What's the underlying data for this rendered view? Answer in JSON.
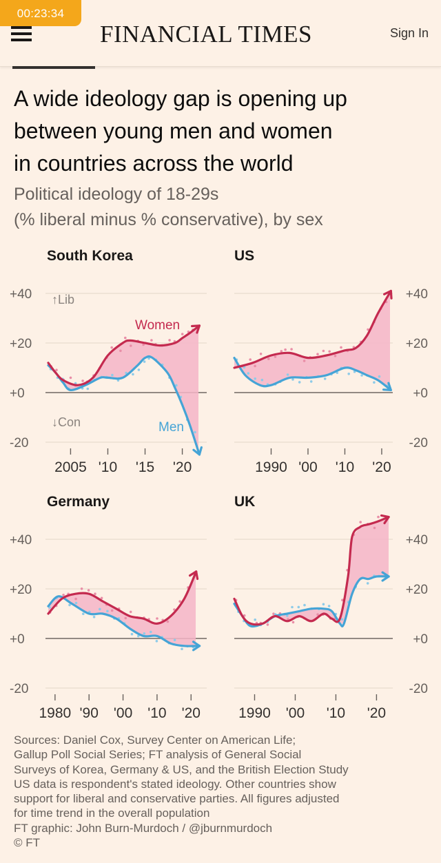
{
  "timer": "00:23:34",
  "header": {
    "brand": "FINANCIAL TIMES",
    "signin": "Sign In"
  },
  "title": [
    "A wide ideology gap is opening up",
    "between young men and women",
    "in countries across the world"
  ],
  "subtitle": [
    "Political ideology of 18-29s",
    "(% liberal minus % conservative), by sex"
  ],
  "chart_data": [
    {
      "type": "line",
      "title": "South Korea",
      "ylim": [
        -20,
        40
      ],
      "y_ticks": [
        "+40",
        "+20",
        "+0",
        "-20"
      ],
      "x_ticks": [
        {
          "value": 2005,
          "label": "2005"
        },
        {
          "value": 2010,
          "label": "'10"
        },
        {
          "value": 2015,
          "label": "'15"
        },
        {
          "value": 2020,
          "label": "'20"
        }
      ],
      "xlim": [
        2002,
        2023
      ],
      "annotations": {
        "lib": "↑Lib",
        "con": "↓Con"
      },
      "series": [
        {
          "name": "Women",
          "color": "#c42a4f",
          "x": [
            2002,
            2003,
            2004,
            2006,
            2008,
            2010,
            2012,
            2013,
            2015,
            2017,
            2019,
            2020,
            2021,
            2022.3
          ],
          "values": [
            12,
            8,
            5,
            3,
            6,
            15,
            20,
            21,
            20,
            19,
            20,
            22,
            24,
            27
          ]
        },
        {
          "name": "Men",
          "color": "#45a4d6",
          "x": [
            2002,
            2003,
            2004,
            2005,
            2007,
            2009,
            2010,
            2012,
            2014,
            2015,
            2016,
            2018,
            2019,
            2020,
            2021,
            2022.3
          ],
          "values": [
            11,
            8,
            4,
            1,
            3,
            6,
            6,
            6,
            11,
            14,
            14,
            8,
            2,
            -5,
            -13,
            -25
          ]
        }
      ]
    },
    {
      "type": "line",
      "title": "US",
      "ylim": [
        -20,
        40
      ],
      "y_ticks": [
        "+40",
        "+20",
        "+0",
        "-20"
      ],
      "x_ticks": [
        {
          "value": 1990,
          "label": "1990"
        },
        {
          "value": 2000,
          "label": "'00"
        },
        {
          "value": 2010,
          "label": "'10"
        },
        {
          "value": 2020,
          "label": "'20"
        }
      ],
      "xlim": [
        1980,
        2023
      ],
      "series": [
        {
          "name": "Women",
          "color": "#c42a4f",
          "x": [
            1980,
            1985,
            1990,
            1995,
            2000,
            2005,
            2010,
            2013,
            2016,
            2019,
            2022.5
          ],
          "values": [
            10,
            12,
            15,
            16,
            14,
            15,
            17,
            18,
            23,
            32,
            41
          ]
        },
        {
          "name": "Men",
          "color": "#45a4d6",
          "x": [
            1980,
            1983,
            1987,
            1990,
            1995,
            2000,
            2005,
            2010,
            2013,
            2016,
            2019,
            2022.5
          ],
          "values": [
            14,
            7,
            3,
            3,
            6,
            6,
            7,
            10,
            9,
            7,
            5,
            1
          ]
        }
      ]
    },
    {
      "type": "line",
      "title": "Germany",
      "ylim": [
        -20,
        40
      ],
      "y_ticks": [
        "+40",
        "+20",
        "+0",
        "-20"
      ],
      "x_ticks": [
        {
          "value": 1980,
          "label": "1980"
        },
        {
          "value": 1990,
          "label": "'90"
        },
        {
          "value": 2000,
          "label": "'00"
        },
        {
          "value": 2010,
          "label": "'10"
        },
        {
          "value": 2020,
          "label": "'20"
        }
      ],
      "xlim": [
        1978,
        2024
      ],
      "series": [
        {
          "name": "Women",
          "color": "#c42a4f",
          "x": [
            1978,
            1982,
            1986,
            1990,
            1994,
            1998,
            2002,
            2006,
            2010,
            2014,
            2018,
            2021.5
          ],
          "values": [
            10,
            16,
            18,
            18,
            15,
            12,
            9,
            8,
            6,
            9,
            16,
            27
          ]
        },
        {
          "name": "Men",
          "color": "#45a4d6",
          "x": [
            1978,
            1981,
            1985,
            1990,
            1994,
            1998,
            2002,
            2006,
            2010,
            2014,
            2018,
            2022.5
          ],
          "values": [
            13,
            17,
            14,
            10,
            10,
            8,
            4,
            1,
            1,
            -2,
            -3,
            -3
          ]
        }
      ]
    },
    {
      "type": "line",
      "title": "UK",
      "ylim": [
        -20,
        40
      ],
      "y_ticks": [
        "+40",
        "+20",
        "+0",
        "-20"
      ],
      "x_ticks": [
        {
          "value": 1990,
          "label": "1990"
        },
        {
          "value": 2000,
          "label": "'00"
        },
        {
          "value": 2010,
          "label": "'10"
        },
        {
          "value": 2020,
          "label": "'20"
        }
      ],
      "xlim": [
        1985,
        2024
      ],
      "series": [
        {
          "name": "Women",
          "color": "#c42a4f",
          "x": [
            1985,
            1987,
            1989,
            1992,
            1995,
            1998,
            2001,
            2004,
            2007,
            2009,
            2011,
            2013,
            2014,
            2016,
            2018,
            2020,
            2023
          ],
          "values": [
            16,
            9,
            6,
            6,
            9,
            7,
            9,
            7,
            10,
            8,
            8,
            25,
            41,
            45,
            46,
            47,
            49
          ]
        },
        {
          "name": "Men",
          "color": "#45a4d6",
          "x": [
            1985,
            1987,
            1989,
            1992,
            1995,
            1998,
            2001,
            2004,
            2007,
            2009,
            2011,
            2012,
            2014,
            2016,
            2018,
            2020,
            2023
          ],
          "values": [
            14,
            9,
            5,
            6,
            9,
            10,
            11,
            12,
            12,
            11,
            6,
            6,
            18,
            24,
            24,
            25,
            25
          ]
        }
      ]
    }
  ],
  "notes": [
    "Sources: Daniel Cox, Survey Center on American Life;",
    "Gallup Poll Social Series; FT analysis of General Social",
    "Surveys of Korea, Germany & US, and the British Election Study",
    "US data is respondent's stated ideology. Other countries show",
    "support for liberal and conservative parties. All figures adjusted",
    "for time trend in the overall population",
    "FT graphic: John Burn-Murdoch / @jburnmurdoch",
    "© FT"
  ]
}
